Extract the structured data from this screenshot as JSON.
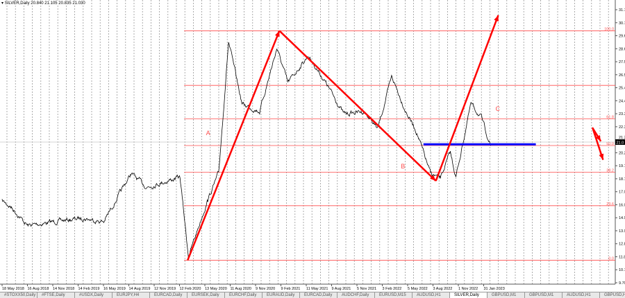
{
  "header": {
    "symbol": "SILVER,Daily",
    "ohlc": "20.840 21.105 20.835 21.030"
  },
  "tabs": [
    "#STOXX50,Daily",
    "#FTSE,Daily",
    "#USDX,Daily",
    "EURJPY,H4",
    "EURCAD,Daily",
    "EURSEK,Daily",
    "EURCHF,Daily",
    "EURAUD,Daily",
    "EURCAD,Daily",
    "AUDCHF,Daily",
    "EURUSD,M15",
    "AUDUSD,H1",
    "SILVER,Daily",
    "GBPUSD,M1",
    "GBPUSD,M1",
    "AUDUSD,H1",
    "GBPUSD,H4"
  ],
  "active_tab": 12,
  "tab_scroll_icon": "arrow-right-icon",
  "chart_data": {
    "type": "line",
    "price_axis_labels": [
      "31.7",
      "30.7",
      "29.6",
      "28.6",
      "27.5",
      "26.5",
      "25.4",
      "24.4",
      "23.3",
      "22.3",
      "21.2",
      "20.2",
      "19.1",
      "18.1",
      "17.0",
      "16.0",
      "14.9",
      "13.9",
      "12.8",
      "11.8",
      "10.7",
      "9.70"
    ],
    "ylim": [
      9.7,
      31.7
    ],
    "date_axis_labels": [
      "18 May 2018",
      "16 Aug 2018",
      "14 Nov 2018",
      "14 Feb 2019",
      "16 May 2019",
      "14 Aug 2019",
      "12 Nov 2019",
      "12 Feb 2020",
      "13 May 2020",
      "11 Aug 2020",
      "9 Nov 2020",
      "9 Feb 2021",
      "11 May 2021",
      "9 Aug 2021",
      "5 Nov 2021",
      "3 Feb 2022",
      "5 May 2022",
      "3 Aug 2022",
      "1 Nov 2022",
      "31 Jan 2023"
    ],
    "current_price": "21.0",
    "grid": true,
    "series": [
      {
        "points": [
          [
            "2018-05-18",
            16.3
          ],
          [
            "2018-06-20",
            15.8
          ],
          [
            "2018-08-18",
            14.3
          ],
          [
            "2018-11-20",
            14.6
          ],
          [
            "2019-03-05",
            14.9
          ],
          [
            "2019-05-18",
            14.6
          ],
          [
            "2019-08-25",
            18.5
          ],
          [
            "2019-10-20",
            17.4
          ],
          [
            "2020-02-18",
            18.2
          ],
          [
            "2020-03-18",
            11.8
          ],
          [
            "2020-05-25",
            16.3
          ],
          [
            "2020-07-05",
            18.5
          ],
          [
            "2020-08-10",
            29.1
          ],
          [
            "2020-09-28",
            24.1
          ],
          [
            "2020-11-30",
            23.5
          ],
          [
            "2021-02-01",
            28.6
          ],
          [
            "2021-03-10",
            25.8
          ],
          [
            "2021-05-22",
            28.0
          ],
          [
            "2021-07-25",
            25.8
          ],
          [
            "2021-09-28",
            23.3
          ],
          [
            "2021-12-10",
            23.5
          ],
          [
            "2022-01-28",
            22.1
          ],
          [
            "2022-03-18",
            26.3
          ],
          [
            "2022-05-08",
            23.5
          ],
          [
            "2022-06-15",
            21.9
          ],
          [
            "2022-08-05",
            18.5
          ],
          [
            "2022-09-10",
            18.1
          ],
          [
            "2022-10-15",
            20.2
          ],
          [
            "2022-11-05",
            18.2
          ],
          [
            "2022-12-28",
            24.1
          ],
          [
            "2023-02-05",
            23.0
          ],
          [
            "2023-03-10",
            20.6
          ]
        ],
        "color": "#000000"
      }
    ],
    "fibonacci": {
      "color": "#ff4d4d",
      "levels": [
        {
          "label": "100.0",
          "price": 30.0
        },
        {
          "label": "",
          "price": 25.6
        },
        {
          "label": "61.8",
          "price": 22.9
        },
        {
          "label": "50.0",
          "price": 20.75
        },
        {
          "label": "38.2",
          "price": 18.6
        },
        {
          "label": "23.6",
          "price": 15.9
        },
        {
          "label": "0.0",
          "price": 11.5
        }
      ]
    },
    "arrows": {
      "color": "#ff0000",
      "items": [
        {
          "from": [
            "2020-03-15",
            11.5
          ],
          "to": [
            "2021-02-10",
            30.0
          ]
        },
        {
          "from": [
            "2021-02-10",
            30.0
          ],
          "to": [
            "2022-08-24",
            17.9
          ]
        },
        {
          "from": [
            "2022-08-24",
            17.9
          ],
          "to": [
            "2023-04-05",
            31.25
          ]
        },
        {
          "from": [
            "2024-03-08",
            22.2
          ],
          "to": [
            "2024-04-08",
            21.1
          ]
        },
        {
          "from": [
            "2024-03-10",
            22.1
          ],
          "to": [
            "2024-04-16",
            19.6
          ]
        }
      ]
    },
    "wave_labels": [
      {
        "text": "A",
        "at": [
          "2020-05-20",
          21.6
        ]
      },
      {
        "text": "B",
        "at": [
          "2022-04-20",
          18.9
        ]
      },
      {
        "text": "C",
        "at": [
          "2023-03-25",
          23.55
        ]
      }
    ],
    "support_line": {
      "color": "#0000ff",
      "from": [
        "2022-07-10",
        20.85
      ],
      "to": [
        "2023-08-18",
        20.85
      ]
    }
  }
}
